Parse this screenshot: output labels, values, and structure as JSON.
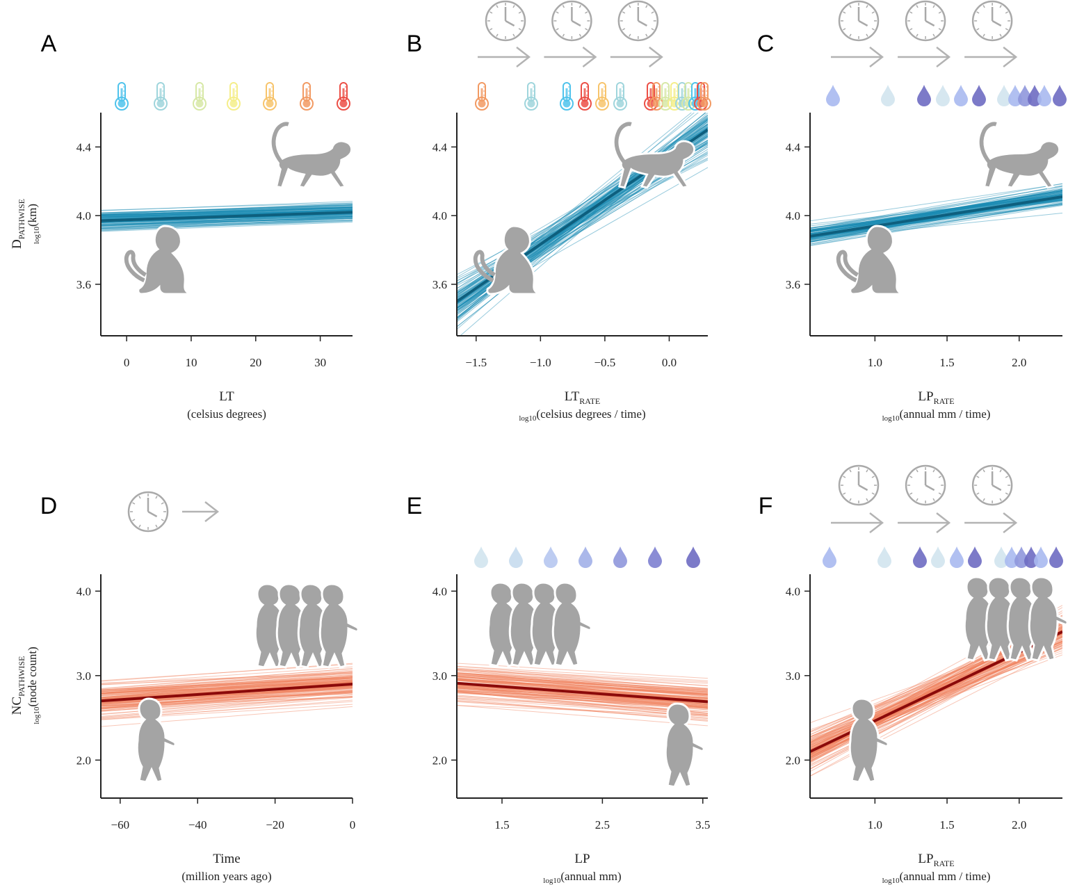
{
  "panels": [
    {
      "id": "A",
      "letter": "A",
      "icons": "thermometers",
      "clocks": 0,
      "xlabel": "LT",
      "xlabel_sub": "",
      "xunit_prefix": "",
      "xunit": "(celsius degrees)",
      "xticks": [
        0,
        10,
        20,
        30
      ],
      "xtick_labels": [
        "0",
        "10",
        "20",
        "30"
      ],
      "ylabel_main": "D",
      "ylabel_sub": "PATHWISE",
      "yunit_prefix": "log10",
      "yunit": "(km)",
      "yticks": [
        3.6,
        4.0,
        4.4
      ],
      "ytick_labels": [
        "3.6",
        "4.0",
        "4.4"
      ],
      "series_color": "#1a8bb3",
      "mean_color": "#0e5f7e",
      "monkey_low": "sitting",
      "monkey_high": "walking"
    },
    {
      "id": "B",
      "letter": "B",
      "icons": "thermometers",
      "clocks": 3,
      "xlabel": "LT",
      "xlabel_sub": "RATE",
      "xunit_prefix": "log10",
      "xunit": "(celsius degrees / time)",
      "xticks": [
        -1.5,
        -1.0,
        -0.5,
        0.0
      ],
      "xtick_labels": [
        "−1.5",
        "−1.0",
        "−0.5",
        "0.0"
      ],
      "yticks": [
        3.6,
        4.0,
        4.4
      ],
      "ytick_labels": [
        "3.6",
        "4.0",
        "4.4"
      ],
      "series_color": "#1a8bb3",
      "mean_color": "#0e5f7e",
      "monkey_low": "sitting",
      "monkey_high": "walking"
    },
    {
      "id": "C",
      "letter": "C",
      "icons": "drops",
      "clocks": 3,
      "xlabel": "LP",
      "xlabel_sub": "RATE",
      "xunit_prefix": "log10",
      "xunit": "(annual mm / time)",
      "xticks": [
        1.0,
        1.5,
        2.0
      ],
      "xtick_labels": [
        "1.0",
        "1.5",
        "2.0"
      ],
      "yticks": [
        3.6,
        4.0,
        4.4
      ],
      "ytick_labels": [
        "3.6",
        "4.0",
        "4.4"
      ],
      "series_color": "#1a8bb3",
      "mean_color": "#0e5f7e",
      "monkey_low": "sitting",
      "monkey_high": "walking"
    },
    {
      "id": "D",
      "letter": "D",
      "icons": "none",
      "clocks": 1,
      "xlabel": "Time",
      "xlabel_sub": "",
      "xunit_prefix": "",
      "xunit": "(million years ago)",
      "xticks": [
        -60,
        -40,
        -20,
        0
      ],
      "xtick_labels": [
        "−60",
        "−40",
        "−20",
        "0"
      ],
      "ylabel_main": "NC",
      "ylabel_sub": "PATHWISE",
      "yunit_prefix": "log10",
      "yunit": "(node count)",
      "yticks": [
        2.0,
        3.0,
        4.0
      ],
      "ytick_labels": [
        "2.0",
        "3.0",
        "4.0"
      ],
      "series_color": "#f0825e",
      "mean_color": "#8b0a0a",
      "monkey_low": "standing-one",
      "monkey_high": "group"
    },
    {
      "id": "E",
      "letter": "E",
      "icons": "drops",
      "clocks": 0,
      "xlabel": "LP",
      "xlabel_sub": "",
      "xunit_prefix": "log10",
      "xunit": "(annual mm)",
      "xticks": [
        1.5,
        2.5,
        3.5
      ],
      "xtick_labels": [
        "1.5",
        "2.5",
        "3.5"
      ],
      "yticks": [
        2.0,
        3.0,
        4.0
      ],
      "ytick_labels": [
        "2.0",
        "3.0",
        "4.0"
      ],
      "series_color": "#f0825e",
      "mean_color": "#8b0a0a",
      "monkey_low": "standing-one",
      "monkey_high": "group"
    },
    {
      "id": "F",
      "letter": "F",
      "icons": "drops",
      "clocks": 3,
      "xlabel": "LP",
      "xlabel_sub": "RATE",
      "xunit_prefix": "log10",
      "xunit": "(annual mm / time)",
      "xticks": [
        1.0,
        1.5,
        2.0
      ],
      "xtick_labels": [
        "1.0",
        "1.5",
        "2.0"
      ],
      "yticks": [
        2.0,
        3.0,
        4.0
      ],
      "ytick_labels": [
        "2.0",
        "3.0",
        "4.0"
      ],
      "series_color": "#f0825e",
      "mean_color": "#8b0a0a",
      "monkey_low": "standing-one",
      "monkey_high": "group"
    }
  ],
  "chart_data": [
    {
      "type": "line",
      "panel": "A",
      "xlabel": "LT (celsius degrees)",
      "ylabel": "D PATHWISE log10(km)",
      "xlim": [
        -4,
        35
      ],
      "ylim": [
        3.3,
        4.6
      ],
      "mean_line": {
        "x": [
          -4,
          35
        ],
        "y": [
          3.97,
          4.02
        ]
      },
      "spread": 0.06,
      "n_draws": 100,
      "thermometer_colors": [
        "#4fc3ec",
        "#9fd5dc",
        "#d7e8a6",
        "#f5ee8a",
        "#f7c46c",
        "#f29a63",
        "#ec4f46"
      ]
    },
    {
      "type": "line",
      "panel": "B",
      "xlabel": "LT RATE log10(celsius degrees / time)",
      "ylabel": "D PATHWISE log10(km)",
      "xlim": [
        -1.65,
        0.3
      ],
      "ylim": [
        3.3,
        4.6
      ],
      "mean_line": {
        "x": [
          -1.65,
          0.3
        ],
        "y": [
          3.5,
          4.5
        ]
      },
      "spread": 0.08,
      "n_draws": 100,
      "thermometer_colors": [
        "#f29a63",
        "#9fd5dc",
        "#4fc3ec",
        "#ec4f46",
        "#f7c46c",
        "#9fd5dc",
        "#ec4f46",
        "#f29a63",
        "#d7e8a6",
        "#f5ee8a",
        "#9fd5dc",
        "#d7e8a6",
        "#4fc3ec",
        "#ec4f46",
        "#f29a63"
      ]
    },
    {
      "type": "line",
      "panel": "C",
      "xlabel": "LP RATE log10(annual mm / time)",
      "ylabel": "D PATHWISE log10(km)",
      "xlim": [
        0.55,
        2.3
      ],
      "ylim": [
        3.3,
        4.6
      ],
      "mean_line": {
        "x": [
          0.55,
          2.3
        ],
        "y": [
          3.88,
          4.11
        ]
      },
      "spread": 0.05,
      "n_draws": 100,
      "drop_colors": [
        "#a9b9ef",
        "#d2e4ee",
        "#6e6bc2",
        "#d2e4ee",
        "#a9b9ef",
        "#6e6bc2",
        "#d2e4ee",
        "#a9b9ef",
        "#8f97dc",
        "#6e6bc2",
        "#a9b9ef",
        "#6e6bc2"
      ]
    },
    {
      "type": "line",
      "panel": "D",
      "xlabel": "Time (million years ago)",
      "ylabel": "NC PATHWISE log10(node count)",
      "xlim": [
        -65,
        0
      ],
      "ylim": [
        1.55,
        4.2
      ],
      "mean_line": {
        "x": [
          -65,
          0
        ],
        "y": [
          2.7,
          2.9
        ]
      },
      "spread": 0.2,
      "n_draws": 120
    },
    {
      "type": "line",
      "panel": "E",
      "xlabel": "LP log10(annual mm)",
      "ylabel": "NC PATHWISE log10(node count)",
      "xlim": [
        1.05,
        3.55
      ],
      "ylim": [
        1.55,
        4.2
      ],
      "mean_line": {
        "x": [
          1.05,
          3.55
        ],
        "y": [
          2.91,
          2.69
        ]
      },
      "spread": 0.22,
      "n_draws": 120,
      "drop_colors": [
        "#d2e4ee",
        "#c7dbee",
        "#b6c6ef",
        "#a2b0e8",
        "#8f97dc",
        "#7d7fd0",
        "#6e6bc2"
      ]
    },
    {
      "type": "line",
      "panel": "F",
      "xlabel": "LP RATE log10(annual mm / time)",
      "ylabel": "NC PATHWISE log10(node count)",
      "xlim": [
        0.55,
        2.3
      ],
      "ylim": [
        1.55,
        4.2
      ],
      "mean_line": {
        "x": [
          0.55,
          2.3
        ],
        "y": [
          2.1,
          3.52
        ]
      },
      "spread": 0.16,
      "n_draws": 120,
      "drop_colors": [
        "#a9b9ef",
        "#d2e4ee",
        "#6e6bc2",
        "#d2e4ee",
        "#a9b9ef",
        "#6e6bc2",
        "#d2e4ee",
        "#a9b9ef",
        "#8f97dc",
        "#6e6bc2",
        "#a9b9ef",
        "#6e6bc2"
      ]
    }
  ]
}
